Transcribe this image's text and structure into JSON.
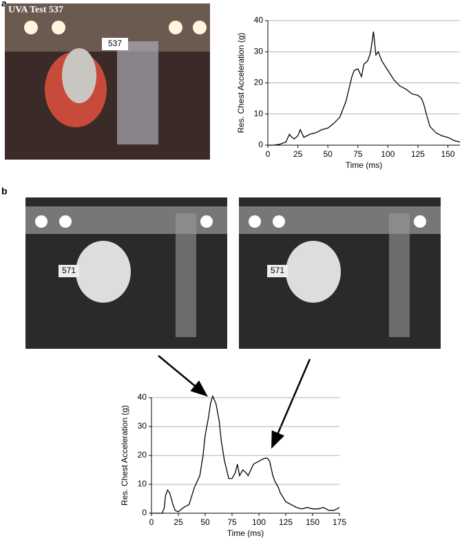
{
  "labels": {
    "panel_a": "a",
    "panel_b": "b",
    "photo_caption": "UVA Test 537",
    "photo_a_sign": "537",
    "photo_b_sign_1": "571",
    "photo_b_sign_2": "571"
  },
  "chart_data": [
    {
      "type": "line",
      "x_label": "Time (ms)",
      "y_label": "Res. Chest Acceleration (g)",
      "xlim": [
        0,
        160
      ],
      "xticks": [
        0,
        25,
        50,
        75,
        100,
        125,
        150
      ],
      "ylim": [
        0,
        40
      ],
      "yticks": [
        0,
        10,
        20,
        30,
        40
      ],
      "grid": true,
      "series": [
        {
          "color": "#000000",
          "x": [
            0,
            5,
            10,
            15,
            18,
            20,
            22,
            25,
            27,
            30,
            35,
            40,
            45,
            50,
            55,
            60,
            65,
            70,
            72,
            75,
            78,
            80,
            83,
            85,
            86,
            88,
            90,
            92,
            95,
            100,
            105,
            110,
            115,
            120,
            125,
            128,
            130,
            132,
            135,
            140,
            145,
            150,
            155,
            160
          ],
          "values": [
            0,
            0,
            0.3,
            1,
            3.5,
            2.5,
            2,
            3,
            5,
            2.5,
            3.5,
            4,
            5,
            5.5,
            7,
            9,
            14,
            22,
            24,
            24.5,
            22,
            26,
            27,
            29,
            31,
            36.5,
            29,
            30,
            27,
            24,
            21,
            19,
            18,
            16.5,
            16,
            15,
            13,
            10,
            6,
            4,
            3,
            2.5,
            1.5,
            1
          ]
        }
      ]
    },
    {
      "type": "line",
      "x_label": "Time (ms)",
      "y_label": "Res. Chest Acceleration (g)",
      "xlim": [
        0,
        175
      ],
      "xticks": [
        0,
        25,
        50,
        75,
        100,
        125,
        150,
        175
      ],
      "ylim": [
        0,
        40
      ],
      "yticks": [
        0,
        10,
        20,
        30,
        40
      ],
      "grid": true,
      "series": [
        {
          "color": "#000000",
          "x": [
            0,
            10,
            12,
            13,
            15,
            17,
            20,
            22,
            25,
            30,
            35,
            40,
            45,
            48,
            50,
            53,
            55,
            57,
            60,
            63,
            65,
            68,
            70,
            72,
            75,
            78,
            80,
            82,
            85,
            88,
            90,
            95,
            100,
            105,
            108,
            110,
            113,
            115,
            118,
            120,
            125,
            130,
            135,
            140,
            145,
            150,
            155,
            160,
            165,
            170,
            175
          ],
          "values": [
            0,
            0,
            2,
            6,
            8,
            7,
            3,
            1,
            0.5,
            2,
            3,
            9,
            13,
            20,
            27,
            33,
            38,
            40.5,
            38,
            32,
            25,
            18,
            15,
            12,
            12,
            14,
            17,
            13,
            15,
            14,
            13,
            17,
            18,
            19,
            19,
            18,
            13,
            11,
            9,
            7,
            4,
            3,
            2,
            1.5,
            2,
            1.5,
            1.5,
            2,
            1,
            1,
            2
          ]
        }
      ]
    }
  ]
}
